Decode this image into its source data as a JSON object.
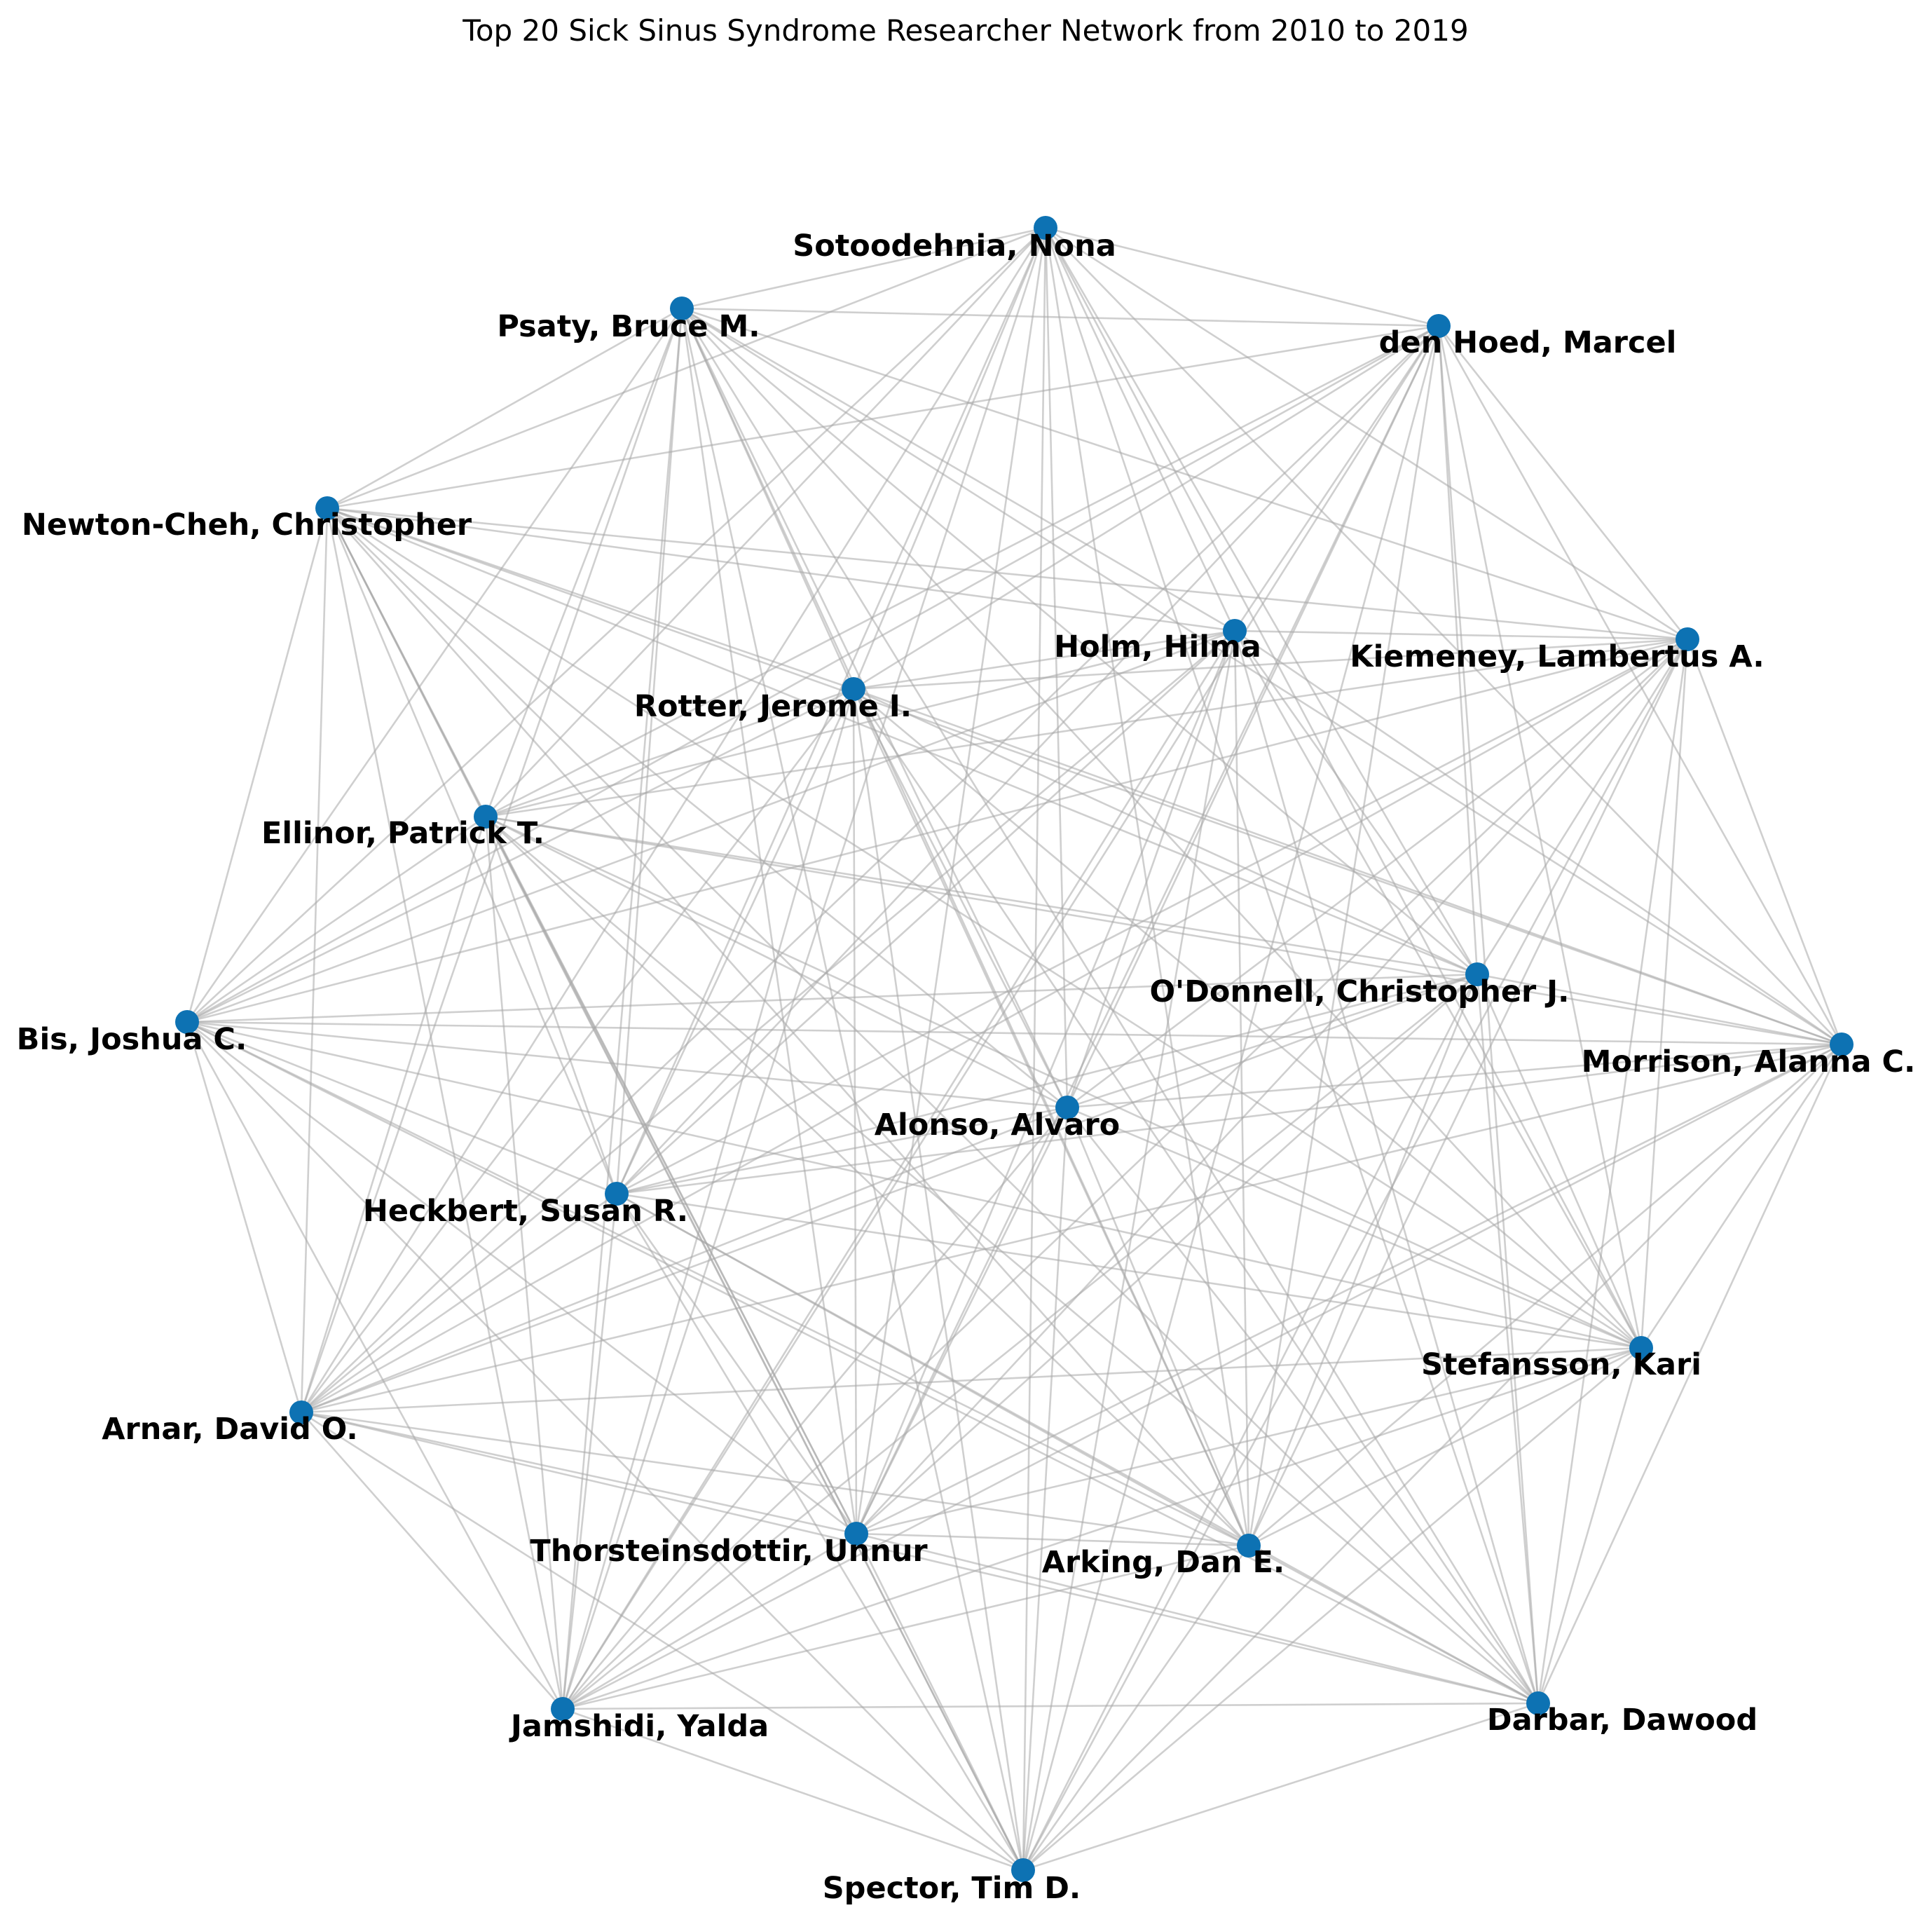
{
  "title": "Top 20 Sick Sinus Syndrome Researcher Network from 2010 to 2019",
  "colors": {
    "node": "#0d72b3",
    "edge": "#a8a8a8",
    "label": "#000000",
    "background": "#ffffff"
  },
  "nodes": [
    {
      "id": "sotoodehnia",
      "label": "Sotoodehnia, Nona"
    },
    {
      "id": "psaty",
      "label": "Psaty, Bruce M."
    },
    {
      "id": "denhoed",
      "label": "den Hoed, Marcel"
    },
    {
      "id": "newtoncheh",
      "label": "Newton-Cheh, Christopher"
    },
    {
      "id": "holm",
      "label": "Holm, Hilma"
    },
    {
      "id": "kiemeney",
      "label": "Kiemeney, Lambertus A."
    },
    {
      "id": "rotter",
      "label": "Rotter, Jerome I."
    },
    {
      "id": "ellinor",
      "label": "Ellinor, Patrick T."
    },
    {
      "id": "odonnell",
      "label": "O'Donnell, Christopher J."
    },
    {
      "id": "bis",
      "label": "Bis, Joshua C."
    },
    {
      "id": "morrison",
      "label": "Morrison, Alanna C."
    },
    {
      "id": "alonso",
      "label": "Alonso, Alvaro"
    },
    {
      "id": "heckbert",
      "label": "Heckbert, Susan R."
    },
    {
      "id": "stefansson",
      "label": "Stefansson, Kari"
    },
    {
      "id": "arnar",
      "label": "Arnar, David O."
    },
    {
      "id": "thorsteinsdottir",
      "label": "Thorsteinsdottir, Unnur"
    },
    {
      "id": "arking",
      "label": "Arking, Dan E."
    },
    {
      "id": "jamshidi",
      "label": "Jamshidi, Yalda"
    },
    {
      "id": "darbar",
      "label": "Darbar, Dawood"
    },
    {
      "id": "spector",
      "label": "Spector, Tim D."
    }
  ],
  "edges": [
    [
      "sotoodehnia",
      "psaty"
    ],
    [
      "sotoodehnia",
      "denhoed"
    ],
    [
      "sotoodehnia",
      "newtoncheh"
    ],
    [
      "sotoodehnia",
      "holm"
    ],
    [
      "sotoodehnia",
      "rotter"
    ],
    [
      "sotoodehnia",
      "ellinor"
    ],
    [
      "sotoodehnia",
      "odonnell"
    ],
    [
      "sotoodehnia",
      "bis"
    ],
    [
      "sotoodehnia",
      "alonso"
    ],
    [
      "sotoodehnia",
      "heckbert"
    ],
    [
      "sotoodehnia",
      "stefansson"
    ],
    [
      "sotoodehnia",
      "thorsteinsdottir"
    ],
    [
      "sotoodehnia",
      "arking"
    ],
    [
      "sotoodehnia",
      "darbar"
    ],
    [
      "sotoodehnia",
      "spector"
    ],
    [
      "sotoodehnia",
      "morrison"
    ],
    [
      "sotoodehnia",
      "arnar"
    ],
    [
      "sotoodehnia",
      "jamshidi"
    ],
    [
      "sotoodehnia",
      "kiemeney"
    ],
    [
      "psaty",
      "denhoed"
    ],
    [
      "psaty",
      "newtoncheh"
    ],
    [
      "psaty",
      "holm"
    ],
    [
      "psaty",
      "rotter"
    ],
    [
      "psaty",
      "ellinor"
    ],
    [
      "psaty",
      "odonnell"
    ],
    [
      "psaty",
      "bis"
    ],
    [
      "psaty",
      "alonso"
    ],
    [
      "psaty",
      "heckbert"
    ],
    [
      "psaty",
      "arking"
    ],
    [
      "psaty",
      "morrison"
    ],
    [
      "psaty",
      "kiemeney"
    ],
    [
      "psaty",
      "stefansson"
    ],
    [
      "psaty",
      "darbar"
    ],
    [
      "psaty",
      "thorsteinsdottir"
    ],
    [
      "psaty",
      "jamshidi"
    ],
    [
      "psaty",
      "arnar"
    ],
    [
      "psaty",
      "spector"
    ],
    [
      "denhoed",
      "newtoncheh"
    ],
    [
      "denhoed",
      "holm"
    ],
    [
      "denhoed",
      "rotter"
    ],
    [
      "denhoed",
      "ellinor"
    ],
    [
      "denhoed",
      "odonnell"
    ],
    [
      "denhoed",
      "bis"
    ],
    [
      "denhoed",
      "alonso"
    ],
    [
      "denhoed",
      "heckbert"
    ],
    [
      "denhoed",
      "thorsteinsdottir"
    ],
    [
      "denhoed",
      "arking"
    ],
    [
      "denhoed",
      "kiemeney"
    ],
    [
      "denhoed",
      "morrison"
    ],
    [
      "denhoed",
      "stefansson"
    ],
    [
      "denhoed",
      "darbar"
    ],
    [
      "denhoed",
      "arnar"
    ],
    [
      "denhoed",
      "jamshidi"
    ],
    [
      "denhoed",
      "spector"
    ],
    [
      "newtoncheh",
      "holm"
    ],
    [
      "newtoncheh",
      "rotter"
    ],
    [
      "newtoncheh",
      "ellinor"
    ],
    [
      "newtoncheh",
      "odonnell"
    ],
    [
      "newtoncheh",
      "bis"
    ],
    [
      "newtoncheh",
      "alonso"
    ],
    [
      "newtoncheh",
      "heckbert"
    ],
    [
      "newtoncheh",
      "arking"
    ],
    [
      "newtoncheh",
      "kiemeney"
    ],
    [
      "newtoncheh",
      "morrison"
    ],
    [
      "newtoncheh",
      "stefansson"
    ],
    [
      "newtoncheh",
      "thorsteinsdottir"
    ],
    [
      "newtoncheh",
      "arnar"
    ],
    [
      "newtoncheh",
      "jamshidi"
    ],
    [
      "newtoncheh",
      "darbar"
    ],
    [
      "newtoncheh",
      "spector"
    ],
    [
      "holm",
      "kiemeney"
    ],
    [
      "holm",
      "rotter"
    ],
    [
      "holm",
      "ellinor"
    ],
    [
      "holm",
      "odonnell"
    ],
    [
      "holm",
      "alonso"
    ],
    [
      "holm",
      "heckbert"
    ],
    [
      "holm",
      "stefansson"
    ],
    [
      "holm",
      "thorsteinsdottir"
    ],
    [
      "holm",
      "arking"
    ],
    [
      "holm",
      "arnar"
    ],
    [
      "holm",
      "darbar"
    ],
    [
      "holm",
      "morrison"
    ],
    [
      "holm",
      "bis"
    ],
    [
      "holm",
      "jamshidi"
    ],
    [
      "holm",
      "spector"
    ],
    [
      "kiemeney",
      "rotter"
    ],
    [
      "kiemeney",
      "ellinor"
    ],
    [
      "kiemeney",
      "odonnell"
    ],
    [
      "kiemeney",
      "alonso"
    ],
    [
      "kiemeney",
      "heckbert"
    ],
    [
      "kiemeney",
      "stefansson"
    ],
    [
      "kiemeney",
      "thorsteinsdottir"
    ],
    [
      "kiemeney",
      "arking"
    ],
    [
      "kiemeney",
      "arnar"
    ],
    [
      "kiemeney",
      "morrison"
    ],
    [
      "kiemeney",
      "bis"
    ],
    [
      "kiemeney",
      "darbar"
    ],
    [
      "kiemeney",
      "jamshidi"
    ],
    [
      "kiemeney",
      "spector"
    ],
    [
      "rotter",
      "ellinor"
    ],
    [
      "rotter",
      "odonnell"
    ],
    [
      "rotter",
      "bis"
    ],
    [
      "rotter",
      "alonso"
    ],
    [
      "rotter",
      "heckbert"
    ],
    [
      "rotter",
      "arking"
    ],
    [
      "rotter",
      "morrison"
    ],
    [
      "rotter",
      "stefansson"
    ],
    [
      "rotter",
      "darbar"
    ],
    [
      "rotter",
      "thorsteinsdottir"
    ],
    [
      "rotter",
      "arnar"
    ],
    [
      "rotter",
      "jamshidi"
    ],
    [
      "rotter",
      "spector"
    ],
    [
      "ellinor",
      "odonnell"
    ],
    [
      "ellinor",
      "bis"
    ],
    [
      "ellinor",
      "alonso"
    ],
    [
      "ellinor",
      "heckbert"
    ],
    [
      "ellinor",
      "arking"
    ],
    [
      "ellinor",
      "morrison"
    ],
    [
      "ellinor",
      "stefansson"
    ],
    [
      "ellinor",
      "thorsteinsdottir"
    ],
    [
      "ellinor",
      "arnar"
    ],
    [
      "ellinor",
      "jamshidi"
    ],
    [
      "ellinor",
      "darbar"
    ],
    [
      "ellinor",
      "spector"
    ],
    [
      "odonnell",
      "bis"
    ],
    [
      "odonnell",
      "alonso"
    ],
    [
      "odonnell",
      "heckbert"
    ],
    [
      "odonnell",
      "arking"
    ],
    [
      "odonnell",
      "morrison"
    ],
    [
      "odonnell",
      "stefansson"
    ],
    [
      "odonnell",
      "thorsteinsdottir"
    ],
    [
      "odonnell",
      "arnar"
    ],
    [
      "odonnell",
      "darbar"
    ],
    [
      "odonnell",
      "jamshidi"
    ],
    [
      "odonnell",
      "spector"
    ],
    [
      "bis",
      "morrison"
    ],
    [
      "bis",
      "alonso"
    ],
    [
      "bis",
      "heckbert"
    ],
    [
      "bis",
      "stefansson"
    ],
    [
      "bis",
      "arnar"
    ],
    [
      "bis",
      "thorsteinsdottir"
    ],
    [
      "bis",
      "arking"
    ],
    [
      "bis",
      "jamshidi"
    ],
    [
      "bis",
      "darbar"
    ],
    [
      "bis",
      "spector"
    ],
    [
      "morrison",
      "alonso"
    ],
    [
      "morrison",
      "heckbert"
    ],
    [
      "morrison",
      "stefansson"
    ],
    [
      "morrison",
      "arnar"
    ],
    [
      "morrison",
      "thorsteinsdottir"
    ],
    [
      "morrison",
      "arking"
    ],
    [
      "morrison",
      "jamshidi"
    ],
    [
      "morrison",
      "darbar"
    ],
    [
      "morrison",
      "spector"
    ],
    [
      "alonso",
      "heckbert"
    ],
    [
      "alonso",
      "stefansson"
    ],
    [
      "alonso",
      "arnar"
    ],
    [
      "alonso",
      "thorsteinsdottir"
    ],
    [
      "alonso",
      "arking"
    ],
    [
      "alonso",
      "jamshidi"
    ],
    [
      "alonso",
      "darbar"
    ],
    [
      "alonso",
      "spector"
    ],
    [
      "heckbert",
      "stefansson"
    ],
    [
      "heckbert",
      "arnar"
    ],
    [
      "heckbert",
      "thorsteinsdottir"
    ],
    [
      "heckbert",
      "arking"
    ],
    [
      "heckbert",
      "jamshidi"
    ],
    [
      "heckbert",
      "darbar"
    ],
    [
      "heckbert",
      "spector"
    ],
    [
      "stefansson",
      "arnar"
    ],
    [
      "stefansson",
      "thorsteinsdottir"
    ],
    [
      "stefansson",
      "arking"
    ],
    [
      "stefansson",
      "jamshidi"
    ],
    [
      "stefansson",
      "darbar"
    ],
    [
      "stefansson",
      "spector"
    ],
    [
      "arnar",
      "thorsteinsdottir"
    ],
    [
      "arnar",
      "arking"
    ],
    [
      "arnar",
      "jamshidi"
    ],
    [
      "arnar",
      "darbar"
    ],
    [
      "arnar",
      "spector"
    ],
    [
      "thorsteinsdottir",
      "arking"
    ],
    [
      "thorsteinsdottir",
      "jamshidi"
    ],
    [
      "thorsteinsdottir",
      "darbar"
    ],
    [
      "thorsteinsdottir",
      "spector"
    ],
    [
      "arking",
      "jamshidi"
    ],
    [
      "arking",
      "darbar"
    ],
    [
      "arking",
      "spector"
    ],
    [
      "jamshidi",
      "darbar"
    ],
    [
      "jamshidi",
      "spector"
    ],
    [
      "darbar",
      "spector"
    ]
  ]
}
